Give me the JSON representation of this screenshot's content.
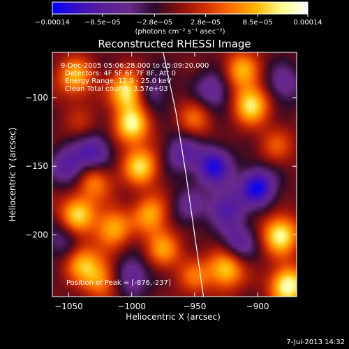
{
  "chart_data": {
    "type": "heatmap",
    "title": "Reconstructed RHESSI Image",
    "xlabel": "Heliocentric X (arcsec)",
    "ylabel": "Heliocentric Y (arcsec)",
    "xlim": [
      -1063,
      -869
    ],
    "ylim": [
      -245,
      -67
    ],
    "x_ticks": [
      {
        "value": -1050,
        "label": "−1050"
      },
      {
        "value": -1000,
        "label": "−1000"
      },
      {
        "value": -950,
        "label": "−950"
      },
      {
        "value": -900,
        "label": "−900"
      }
    ],
    "y_ticks": [
      {
        "value": -100,
        "label": "−100"
      },
      {
        "value": -150,
        "label": "−150"
      },
      {
        "value": -200,
        "label": "−200"
      }
    ],
    "colorbar": {
      "range": [
        -0.00014,
        0.00014
      ],
      "tick_labels": [
        "−0.00014",
        "−8.5e−05",
        "−2.8e−05",
        "2.8e−05",
        "8.5e−05",
        "0.00014"
      ],
      "unit_label": "(photons cm⁻² s⁻¹ asec⁻²)",
      "colormap": [
        "#0000ff",
        "#3a10c0",
        "#5a1f9a",
        "#6a2a8a",
        "#2a0a2a",
        "#8a1010",
        "#d03000",
        "#ff7000",
        "#ffb800",
        "#ffff90",
        "#ffffff"
      ]
    },
    "annotations": [
      "9-Dec-2005 05:06:28.000 to 05:09:20.000",
      "Detectors: 4F 5F 6F 7F 8F, Att 0",
      "Energy Range: 12.0 - 25.0 keV",
      "Clean    Total counts: 3.57e+03"
    ],
    "peak_label": "Position of Peak = [-876,-237]",
    "limb": [
      [
        -975,
        -67
      ],
      [
        -965,
        -110
      ],
      [
        -957,
        -155
      ],
      [
        -950,
        -200
      ],
      [
        -943,
        -245
      ]
    ],
    "features": [
      {
        "x": -1045,
        "y": -85,
        "value": 9.5e-05
      },
      {
        "x": -1040,
        "y": -120,
        "value": 3e-05
      },
      {
        "x": -1003,
        "y": -95,
        "value": 0.00013
      },
      {
        "x": -1000,
        "y": -120,
        "value": 0.00012
      },
      {
        "x": -993,
        "y": -150,
        "value": 0.00011
      },
      {
        "x": -1030,
        "y": -160,
        "value": 8e-05
      },
      {
        "x": -1043,
        "y": -185,
        "value": 0.00011
      },
      {
        "x": -1015,
        "y": -195,
        "value": 9.5e-05
      },
      {
        "x": -985,
        "y": -185,
        "value": 9e-05
      },
      {
        "x": -975,
        "y": -210,
        "value": 8e-05
      },
      {
        "x": -1040,
        "y": -220,
        "value": 9e-05
      },
      {
        "x": -1025,
        "y": -232,
        "value": 8e-05
      },
      {
        "x": -950,
        "y": -115,
        "value": 6e-05
      },
      {
        "x": -913,
        "y": -80,
        "value": 9e-05
      },
      {
        "x": -905,
        "y": -105,
        "value": 0.00012
      },
      {
        "x": -885,
        "y": -135,
        "value": 5e-05
      },
      {
        "x": -882,
        "y": -200,
        "value": 0.00013
      },
      {
        "x": -925,
        "y": -225,
        "value": 0.00011
      },
      {
        "x": -950,
        "y": -230,
        "value": 6e-05
      },
      {
        "x": -876,
        "y": -237,
        "value": 0.00014
      },
      {
        "x": -1030,
        "y": -140,
        "value": -9e-05
      },
      {
        "x": -1050,
        "y": -150,
        "value": -8e-05
      },
      {
        "x": -985,
        "y": -95,
        "value": -6e-05
      },
      {
        "x": -960,
        "y": -140,
        "value": -7e-05
      },
      {
        "x": -935,
        "y": -150,
        "value": -0.00011
      },
      {
        "x": -900,
        "y": -165,
        "value": -0.00012
      },
      {
        "x": -925,
        "y": -180,
        "value": -8e-05
      },
      {
        "x": -935,
        "y": -95,
        "value": -7e-05
      },
      {
        "x": -880,
        "y": -90,
        "value": -6e-05
      },
      {
        "x": -955,
        "y": -180,
        "value": -5e-05
      },
      {
        "x": -915,
        "y": -205,
        "value": -7e-05
      },
      {
        "x": -1000,
        "y": -230,
        "value": -7e-05
      },
      {
        "x": -1055,
        "y": -205,
        "value": -5e-05
      }
    ]
  },
  "footer": {
    "date": "7-Jul-2013 14:32"
  }
}
